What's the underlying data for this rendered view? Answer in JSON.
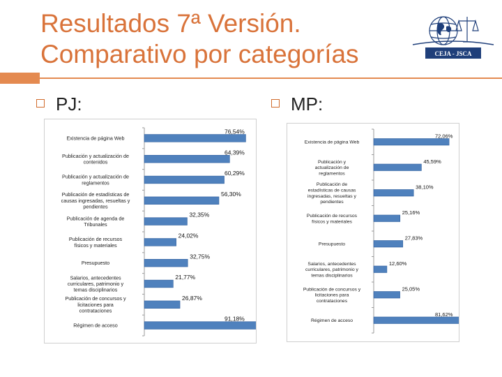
{
  "slide": {
    "title_line1": "Resultados 7ª Versión.",
    "title_line2": "Comparativo por categorías"
  },
  "logo": {
    "caption": "CEJA - JSCA"
  },
  "sections": [
    {
      "label": "PJ:"
    },
    {
      "label": "MP:"
    }
  ],
  "colors": {
    "title": "#d9733a",
    "accent": "#e48a50",
    "bar": "#4f81bd",
    "bar_dark": "#2f5f9e",
    "logo": "#1f3f7a"
  },
  "chart_data": [
    {
      "type": "bar",
      "orientation": "horizontal",
      "categories": [
        "Existencia de página Web",
        "Publicación y actualización de contenidos",
        "Publicación y actualización de reglamentos",
        "Publicación de estadísticas de causas ingresadas, resueltas y pendientes",
        "Publicación de agenda de Tribunales",
        "Publicación de recursos físicos y materiales",
        "Presupuesto",
        "Salarios, antecedentes curriculares, patrimonio y temas disciplinarios",
        "Publicación de concursos y licitaciones para contrataciones",
        "Régimen de acceso"
      ],
      "values": [
        76.54,
        64.39,
        60.29,
        56.3,
        32.35,
        24.02,
        32.75,
        21.77,
        26.87,
        91.18
      ],
      "value_labels": [
        "76,54%",
        "64,39%",
        "60,29%",
        "56,30%",
        "32,35%",
        "24,02%",
        "32,75%",
        "21,77%",
        "26,87%",
        "91,18%"
      ],
      "xlim": [
        0,
        100
      ],
      "grid": false,
      "legend": "none"
    },
    {
      "type": "bar",
      "orientation": "horizontal",
      "categories": [
        "Existencia de página Web",
        "Publicación y actualización de reglamentos",
        "Publicación de estadísticas de causas ingresadas, resueltas y pendientes",
        "Publicación de recursos físicos y materiales",
        "Presupuesto",
        "Salarios, antecedentes curriculares, patrimonio y temas disciplinarios",
        "Publicación de concursos y licitaciones para contrataciones",
        "Régimen de acceso"
      ],
      "values": [
        72.06,
        45.59,
        38.1,
        25.16,
        27.83,
        12.6,
        25.05,
        81.62
      ],
      "value_labels": [
        "72,06%",
        "45,59%",
        "38,10%",
        "25,16%",
        "27,83%",
        "12,60%",
        "25,05%",
        "81,62%"
      ],
      "xlim": [
        0,
        100
      ],
      "grid": false,
      "legend": "none"
    }
  ]
}
